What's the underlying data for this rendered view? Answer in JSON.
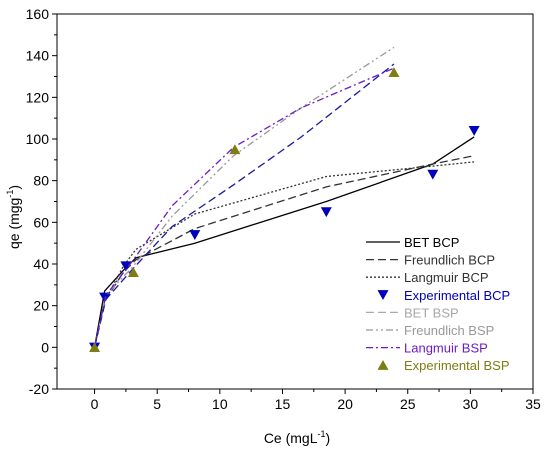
{
  "chart_data": {
    "type": "line",
    "xlabel": "Ce (mgL",
    "xlabel_sup": "-1",
    "xlabel_end": ")",
    "ylabel": "qe (mgg",
    "ylabel_sup": "-1",
    "ylabel_end": ")",
    "xlim": [
      -3,
      35
    ],
    "ylim": [
      -20,
      160
    ],
    "xticks": [
      0,
      5,
      10,
      15,
      20,
      25,
      30,
      35
    ],
    "yticks": [
      -20,
      0,
      20,
      40,
      60,
      80,
      100,
      120,
      140,
      160
    ],
    "grid": false,
    "legend_position": "right-middle",
    "series": [
      {
        "name": "BET BCP",
        "kind": "line",
        "color": "#000000",
        "dash": "solid",
        "x": [
          0,
          0.8,
          2.3,
          3.3,
          8.0,
          18.5,
          27.0,
          30.3
        ],
        "y": [
          0,
          27,
          37,
          43,
          50,
          70,
          88,
          101
        ]
      },
      {
        "name": "Freundlich BCP",
        "kind": "line",
        "color": "#333333",
        "dash": "dashed",
        "x": [
          0,
          0.8,
          2.3,
          3.3,
          8.0,
          18.5,
          27.0,
          30.3
        ],
        "y": [
          0,
          22,
          36,
          42,
          57,
          77,
          88,
          92
        ]
      },
      {
        "name": "Langmuir BCP",
        "kind": "line",
        "color": "#333333",
        "dash": "dotted",
        "x": [
          0,
          0.8,
          2.3,
          3.3,
          8.0,
          18.5,
          27.0,
          30.3
        ],
        "y": [
          0,
          22,
          39,
          47,
          64,
          82,
          87,
          89
        ]
      },
      {
        "name": "Experimental BCP",
        "kind": "marker",
        "marker": "triangle-down",
        "color": "#0000b8",
        "x": [
          0,
          0.8,
          2.5,
          8.0,
          18.5,
          27.0,
          30.3
        ],
        "y": [
          0,
          24,
          39,
          54,
          65,
          83,
          104
        ]
      },
      {
        "name": "BET BSP",
        "kind": "line",
        "color": "#1a1aa0",
        "dash": "dashed",
        "legend_color": "#a8a8a8",
        "x": [
          0,
          0.9,
          3.1,
          6.2,
          11.1,
          16.5,
          23.9
        ],
        "y": [
          0,
          23,
          38,
          58,
          78,
          101,
          136
        ]
      },
      {
        "name": "Freundlich BSP",
        "kind": "line",
        "color": "#999999",
        "dash": "dashdotdot",
        "x": [
          0,
          0.9,
          3.1,
          6.2,
          11.1,
          16.5,
          23.9
        ],
        "y": [
          0,
          25,
          39,
          63,
          92,
          115,
          144
        ]
      },
      {
        "name": "Langmuir BSP",
        "kind": "line",
        "color": "#6a1cc8",
        "dash": "dashdot",
        "x": [
          0,
          0.9,
          3.1,
          6.2,
          11.1,
          16.5,
          23.9
        ],
        "y": [
          0,
          25,
          42,
          68,
          96,
          115,
          134
        ]
      },
      {
        "name": "Experimental BSP",
        "kind": "marker",
        "marker": "triangle-up",
        "color": "#7d7d14",
        "x": [
          0,
          3.1,
          11.2,
          23.9
        ],
        "y": [
          0,
          36,
          95,
          132
        ]
      }
    ]
  }
}
